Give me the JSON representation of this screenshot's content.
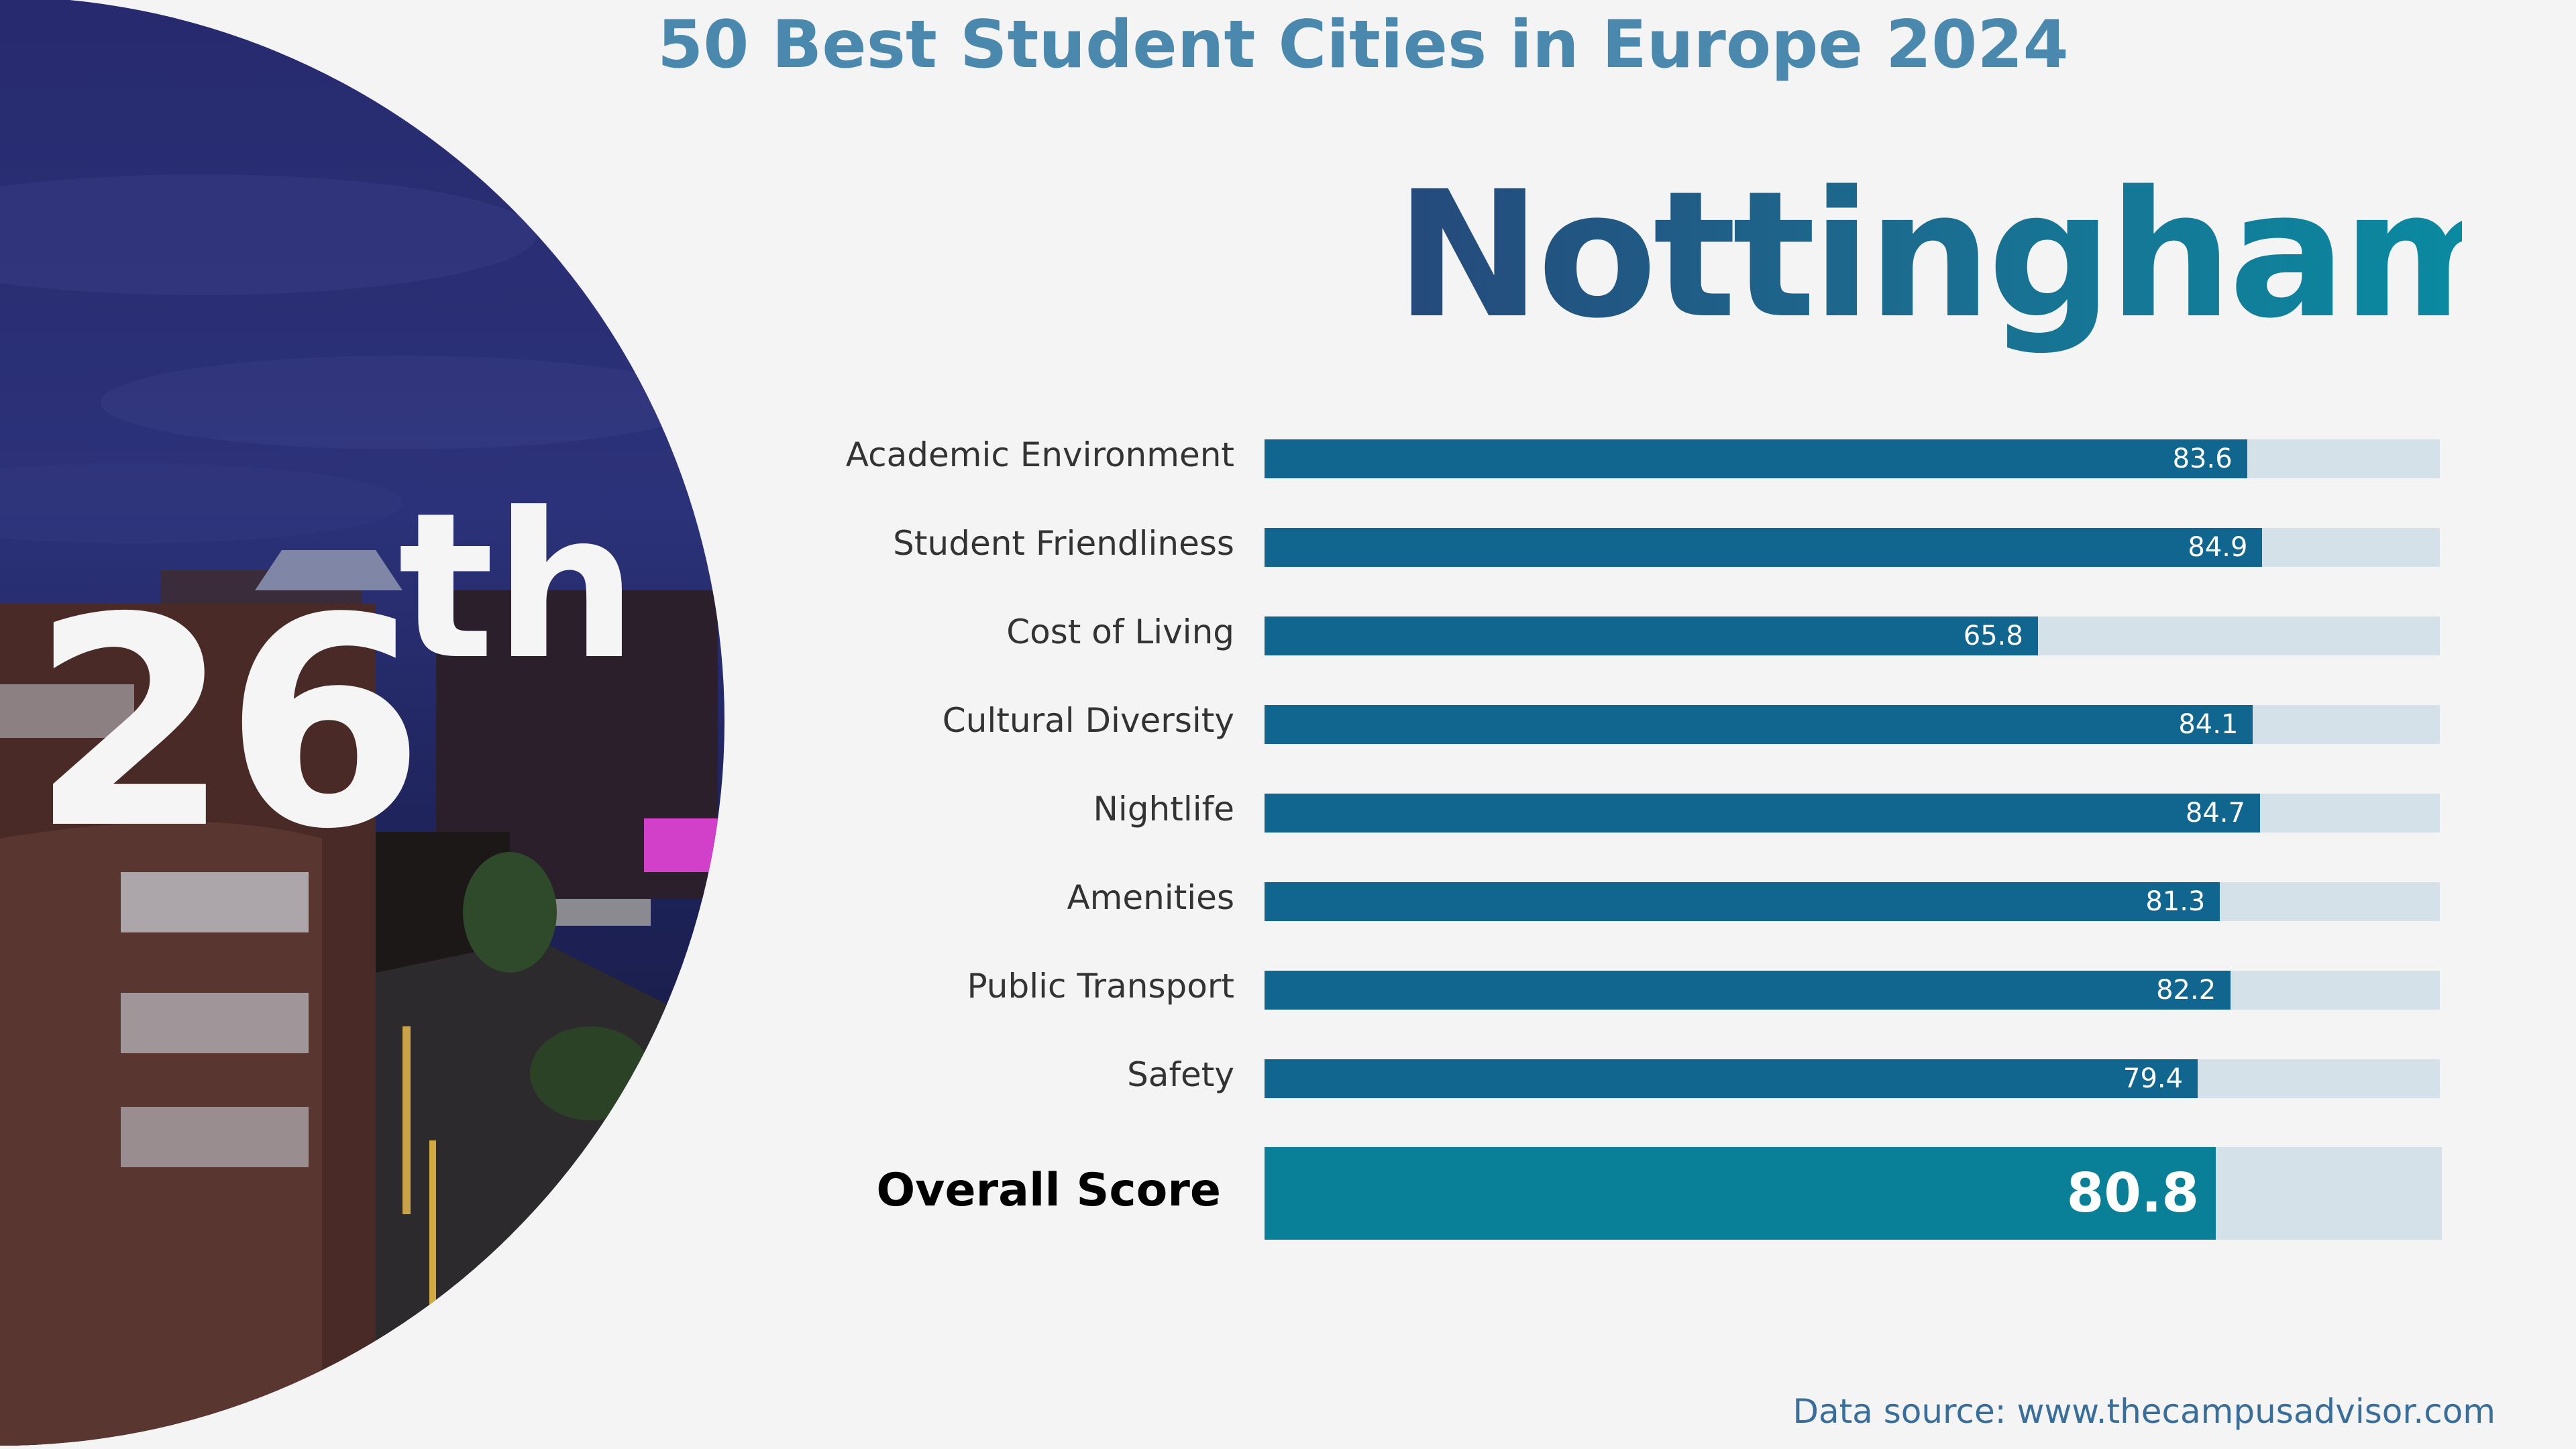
{
  "header": {
    "supertitle": "50 Best Student Cities in Europe 2024",
    "city": "Nottingham"
  },
  "rank": {
    "number": "26",
    "suffix": "th"
  },
  "overall": {
    "label": "Overall Score",
    "value": 80.8
  },
  "source": "Data source: www.thecampusadvisor.com",
  "colors": {
    "bar": "#11668f",
    "track": "#d5e1e8",
    "overall_bar": "#0a8098",
    "title_gradient_start": "#25497a",
    "title_gradient_end": "#0a8aa1"
  },
  "chart_data": {
    "type": "bar",
    "orientation": "horizontal",
    "xlim": [
      0,
      100
    ],
    "categories": [
      "Academic Environment",
      "Student Friendliness",
      "Cost of Living",
      "Cultural Diversity",
      "Nightlife",
      "Amenities",
      "Public Transport",
      "Safety"
    ],
    "values": [
      83.6,
      84.9,
      65.8,
      84.1,
      84.7,
      81.3,
      82.2,
      79.4
    ]
  }
}
